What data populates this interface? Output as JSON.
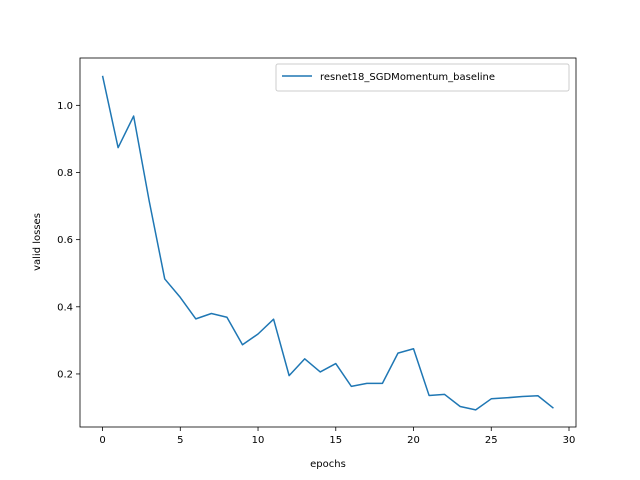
{
  "chart_data": {
    "type": "line",
    "title": "",
    "xlabel": "epochs",
    "ylabel": "valid losses",
    "xlim": [
      -1.45,
      30.45
    ],
    "ylim": [
      0.042,
      1.141
    ],
    "xticks": [
      0,
      5,
      10,
      15,
      20,
      25,
      30
    ],
    "yticks": [
      0.2,
      0.4,
      0.6,
      0.8,
      1.0
    ],
    "xtick_labels": [
      "0",
      "5",
      "10",
      "15",
      "20",
      "25",
      "30"
    ],
    "ytick_labels": [
      "0.2",
      "0.4",
      "0.6",
      "0.8",
      "1.0"
    ],
    "grid": false,
    "legend_position": "top-right",
    "series": [
      {
        "name": "resnet18_SGDMomentum_baseline",
        "color": "#1f77b4",
        "x": [
          0,
          1,
          2,
          3,
          4,
          5,
          6,
          7,
          8,
          9,
          10,
          11,
          12,
          13,
          14,
          15,
          16,
          17,
          18,
          19,
          20,
          21,
          22,
          23,
          24,
          25,
          26,
          27,
          28,
          29
        ],
        "y": [
          1.088,
          0.874,
          0.968,
          0.715,
          0.483,
          0.428,
          0.364,
          0.38,
          0.369,
          0.287,
          0.319,
          0.363,
          0.195,
          0.245,
          0.206,
          0.231,
          0.163,
          0.172,
          0.172,
          0.262,
          0.275,
          0.136,
          0.139,
          0.103,
          0.093,
          0.126,
          0.129,
          0.133,
          0.135,
          0.098
        ]
      }
    ]
  }
}
